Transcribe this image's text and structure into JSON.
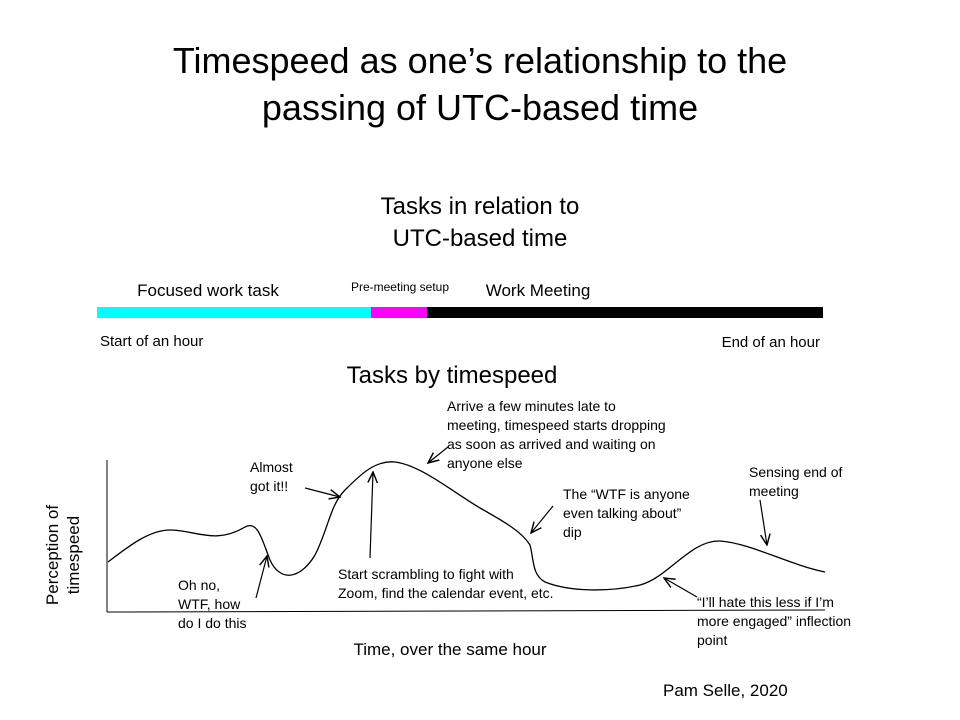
{
  "title": [
    "Timespeed as one’s relationship to the",
    "passing of UTC-based time"
  ],
  "timeline": {
    "title": [
      "Tasks in relation to",
      "UTC-based time"
    ],
    "segments": [
      "Focused work task",
      "Pre-meeting setup",
      "Work Meeting"
    ],
    "start_label": "Start of an hour",
    "end_label": "End of an hour"
  },
  "graph": {
    "title": "Tasks by timespeed",
    "y_label": [
      "Perception of",
      "timespeed"
    ],
    "x_label": "Time, over the same hour",
    "annotations": [
      [
        "Oh no,",
        "WTF, how",
        "do I do this"
      ],
      [
        "Almost",
        "got it!!"
      ],
      [
        "Start scrambling to fight with",
        "Zoom, find the calendar event, etc."
      ],
      [
        "Arrive a few minutes late to",
        "meeting, timespeed starts dropping",
        "as soon as arrived and waiting on",
        "anyone else"
      ],
      [
        "The “WTF is anyone",
        "even talking about”",
        "dip"
      ],
      [
        "“I’ll hate this less if I’m",
        "more engaged” inflection",
        "point"
      ],
      [
        "Sensing end of",
        "meeting"
      ]
    ]
  },
  "credit": "Pam Selle, 2020"
}
